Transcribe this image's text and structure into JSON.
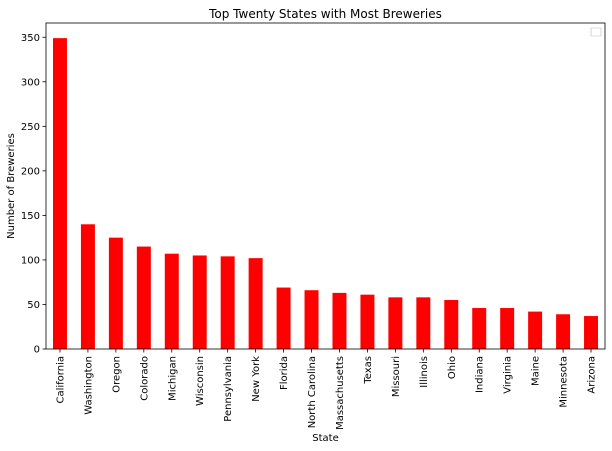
{
  "chart_data": {
    "type": "bar",
    "title": "Top Twenty States with Most Breweries",
    "xlabel": "State",
    "ylabel": "Number of Breweries",
    "categories": [
      "California",
      "Washington",
      "Oregon",
      "Colorado",
      "Michigan",
      "Wisconsin",
      "Pennsylvania",
      "New York",
      "Florida",
      "North Carolina",
      "Massachusetts",
      "Texas",
      "Missouri",
      "Illinois",
      "Ohio",
      "Indiana",
      "Virginia",
      "Maine",
      "Minnesota",
      "Arizona"
    ],
    "values": [
      349,
      140,
      125,
      115,
      107,
      105,
      104,
      102,
      69,
      66,
      63,
      61,
      58,
      58,
      55,
      46,
      46,
      42,
      39,
      37
    ],
    "ylim": [
      0,
      366
    ],
    "yticks": [
      0,
      50,
      100,
      150,
      200,
      250,
      300,
      350
    ],
    "bar_color": "#ff0000",
    "grid": false,
    "legend": {
      "position": "top-right",
      "entries": []
    }
  }
}
